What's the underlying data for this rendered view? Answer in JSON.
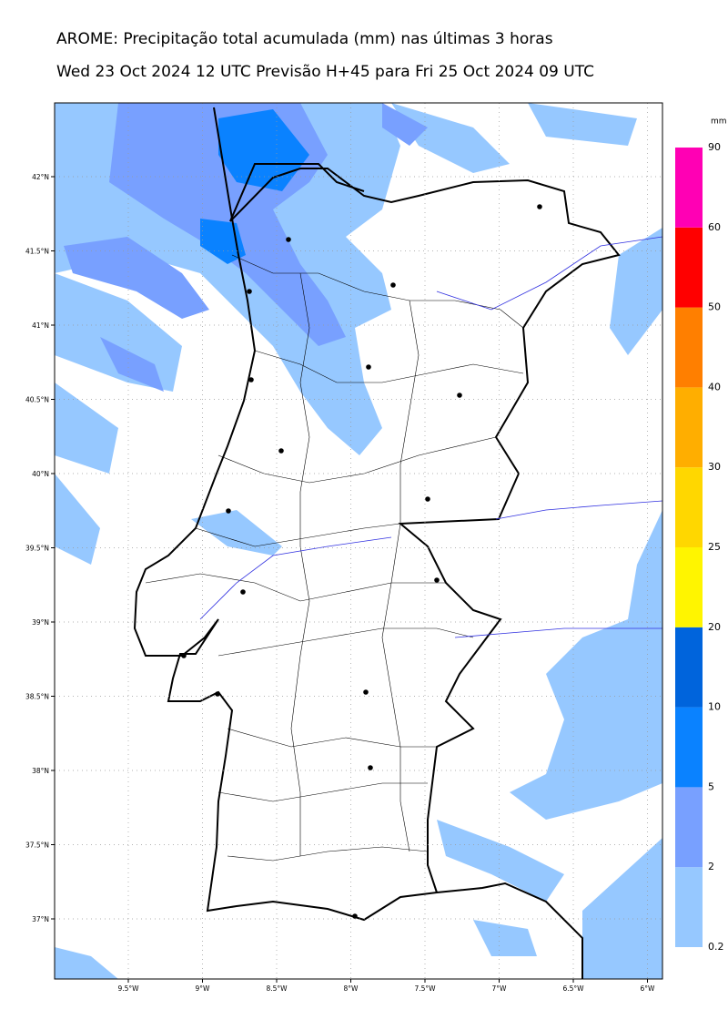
{
  "title": "AROME: Precipitação total acumulada (mm) nas últimas 3 horas",
  "subtitle": "Wed 23 Oct 2024 12 UTC Previsão H+45 para Fri 25 Oct 2024 09 UTC",
  "map": {
    "lon_ticks": [
      {
        "value": -9.5,
        "label": "9.5°W"
      },
      {
        "value": -9,
        "label": "9°W"
      },
      {
        "value": -8.5,
        "label": "8.5°W"
      },
      {
        "value": -8,
        "label": "8°W"
      },
      {
        "value": -7.5,
        "label": "7.5°W"
      },
      {
        "value": -7,
        "label": "7°W"
      },
      {
        "value": -6.5,
        "label": "6.5°W"
      },
      {
        "value": -6,
        "label": "6°W"
      }
    ],
    "lat_ticks": [
      {
        "value": 42,
        "label": "42°N"
      },
      {
        "value": 41.5,
        "label": "41.5°N"
      },
      {
        "value": 41,
        "label": "41°N"
      },
      {
        "value": 40.5,
        "label": "40.5°N"
      },
      {
        "value": 40,
        "label": "40°N"
      },
      {
        "value": 39.5,
        "label": "39.5°N"
      },
      {
        "value": 39,
        "label": "39°N"
      },
      {
        "value": 38.5,
        "label": "38.5°N"
      },
      {
        "value": 38,
        "label": "38°N"
      },
      {
        "value": 37.5,
        "label": "37.5°N"
      },
      {
        "value": 37,
        "label": "37°N"
      }
    ]
  },
  "colorbar": {
    "unit": "mm",
    "levels": [
      0.2,
      2,
      5,
      10,
      20,
      25,
      30,
      40,
      50,
      60,
      90
    ],
    "colors": [
      "#96c8ff",
      "#78a0ff",
      "#0a82ff",
      "#0064dc",
      "#fff500",
      "#ffd700",
      "#ffae00",
      "#ff7f00",
      "#ff0000",
      "#ff00b4"
    ]
  }
}
